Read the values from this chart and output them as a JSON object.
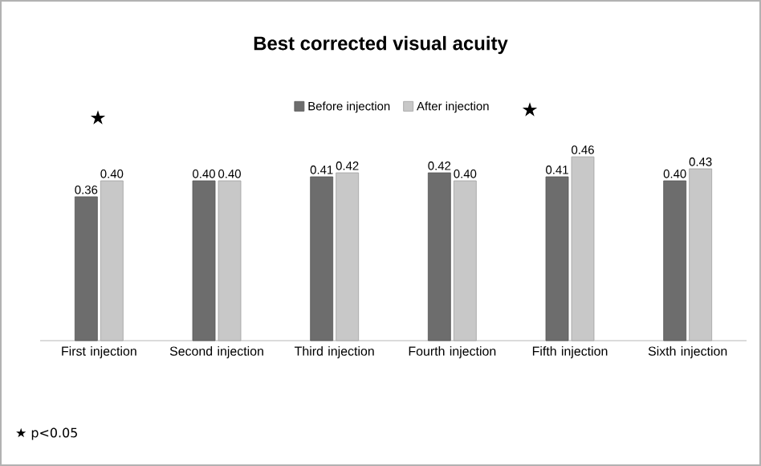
{
  "chart_data": {
    "type": "bar",
    "title": "Best corrected visual acuity",
    "categories": [
      "First injection",
      "Second injection",
      "Third injection",
      "Fourth injection",
      "Fifth injection",
      "Sixth injection"
    ],
    "series": [
      {
        "name": "Before injection",
        "color": "#6d6d6d",
        "values": [
          0.36,
          0.4,
          0.41,
          0.42,
          0.41,
          0.4
        ],
        "value_labels": [
          "0.36",
          "0.40",
          "0.41",
          "0.42",
          "0.41",
          "0.40"
        ]
      },
      {
        "name": "After injection",
        "color": "#c8c8c8",
        "values": [
          0.4,
          0.4,
          0.42,
          0.4,
          0.46,
          0.43
        ],
        "value_labels": [
          "0.40",
          "0.40",
          "0.42",
          "0.40",
          "0.46",
          "0.43"
        ]
      }
    ],
    "legend": "top",
    "annotations": [
      "★",
      "★",
      "★ p<0.05"
    ]
  }
}
